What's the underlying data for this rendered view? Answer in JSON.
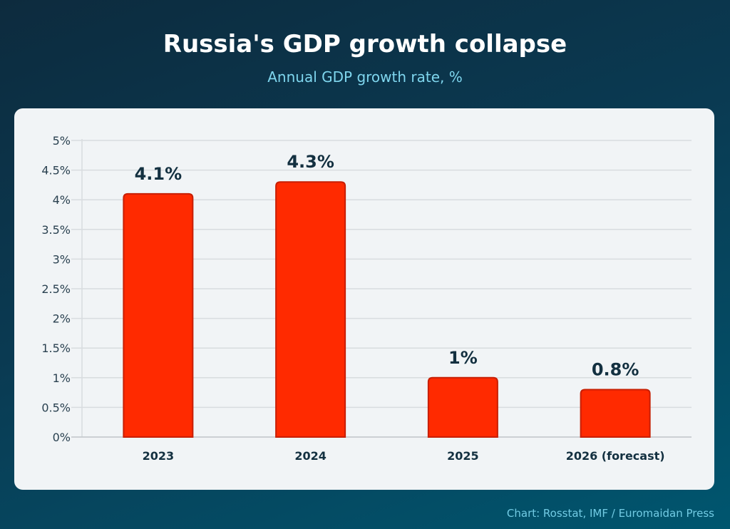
{
  "title": "Russia's GDP growth collapse",
  "subtitle": "Annual GDP growth rate, %",
  "source": "Chart: Rosstat, IMF / Euromaidan Press",
  "colors": {
    "bar": "#ff2a00",
    "bar_border": "#c81e00",
    "text": "#133040",
    "card": "#f1f4f6"
  },
  "chart_data": {
    "type": "bar",
    "categories": [
      "2023",
      "2024",
      "2025",
      "2026 (forecast)"
    ],
    "values": [
      4.1,
      4.3,
      1,
      0.8
    ],
    "data_labels": [
      "4.1%",
      "4.3%",
      "1%",
      "0.8%"
    ],
    "ylim": [
      0,
      5
    ],
    "yticks": [
      0,
      0.5,
      1,
      1.5,
      2,
      2.5,
      3,
      3.5,
      4,
      4.5,
      5
    ],
    "ytick_labels": [
      "0%",
      "0.5%",
      "1%",
      "1.5%",
      "2%",
      "2.5%",
      "3%",
      "3.5%",
      "4%",
      "4.5%",
      "5%"
    ],
    "grid": true,
    "xlabel": "",
    "ylabel": ""
  }
}
